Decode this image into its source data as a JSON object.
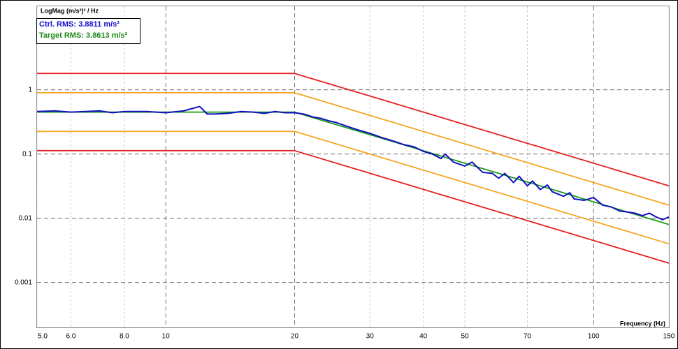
{
  "chart_data": {
    "type": "line",
    "y_label": "LogMag (m/s²)² / Hz",
    "x_label": "Frequency (Hz)",
    "annotations": [
      {
        "text": "Ctrl. RMS: 3.8811 m/s²",
        "color": "#1010d0"
      },
      {
        "text": "Target RMS: 3.8613 m/s²",
        "color": "#1a8a1a"
      }
    ],
    "xscale": "log",
    "yscale": "log",
    "grid": true,
    "xlim": [
      5,
      150
    ],
    "ylim": [
      0.0002,
      20
    ],
    "xticks": [
      {
        "value": 5,
        "label": "5.0"
      },
      {
        "value": 6,
        "label": "6.0"
      },
      {
        "value": 8,
        "label": "8.0"
      },
      10,
      20,
      30,
      40,
      50,
      70,
      100,
      150
    ],
    "yticks": [
      1,
      0.1,
      0.01,
      0.001
    ],
    "series": [
      {
        "color": "#e52020",
        "x": [
          5,
          20,
          150
        ],
        "values": [
          1.8,
          1.8,
          0.032
        ]
      },
      {
        "color": "#f5a623",
        "x": [
          5,
          20,
          150
        ],
        "values": [
          0.9,
          0.9,
          0.016
        ]
      },
      {
        "color": "#f5a623",
        "x": [
          5,
          20,
          150
        ],
        "values": [
          0.225,
          0.225,
          0.004
        ]
      },
      {
        "color": "#e52020",
        "x": [
          5,
          20,
          150
        ],
        "values": [
          0.113,
          0.113,
          0.002
        ]
      },
      {
        "color": "#1a9a1a",
        "x": [
          5,
          20,
          150
        ],
        "values": [
          0.45,
          0.45,
          0.008
        ]
      },
      {
        "color": "#1010c0",
        "x": [
          5,
          5.5,
          6,
          7,
          7.5,
          8,
          9,
          10,
          11,
          12,
          12.5,
          13,
          14,
          15,
          16,
          17,
          18,
          19,
          20,
          21,
          22,
          23,
          24,
          25,
          27,
          28,
          30,
          32,
          34,
          36,
          38,
          40,
          42,
          44,
          45,
          47,
          50,
          52,
          55,
          58,
          60,
          62,
          65,
          67,
          70,
          72,
          75,
          78,
          80,
          85,
          88,
          90,
          95,
          100,
          105,
          110,
          115,
          120,
          125,
          130,
          135,
          140,
          145,
          150
        ],
        "values": [
          0.46,
          0.47,
          0.45,
          0.47,
          0.44,
          0.46,
          0.46,
          0.44,
          0.47,
          0.55,
          0.42,
          0.42,
          0.43,
          0.46,
          0.45,
          0.43,
          0.46,
          0.44,
          0.44,
          0.42,
          0.38,
          0.36,
          0.33,
          0.31,
          0.26,
          0.24,
          0.21,
          0.18,
          0.16,
          0.14,
          0.13,
          0.11,
          0.1,
          0.085,
          0.1,
          0.075,
          0.065,
          0.075,
          0.052,
          0.05,
          0.042,
          0.05,
          0.036,
          0.045,
          0.032,
          0.038,
          0.028,
          0.033,
          0.026,
          0.022,
          0.025,
          0.02,
          0.019,
          0.021,
          0.016,
          0.015,
          0.013,
          0.0125,
          0.012,
          0.011,
          0.012,
          0.0105,
          0.0095,
          0.0105
        ]
      }
    ]
  }
}
